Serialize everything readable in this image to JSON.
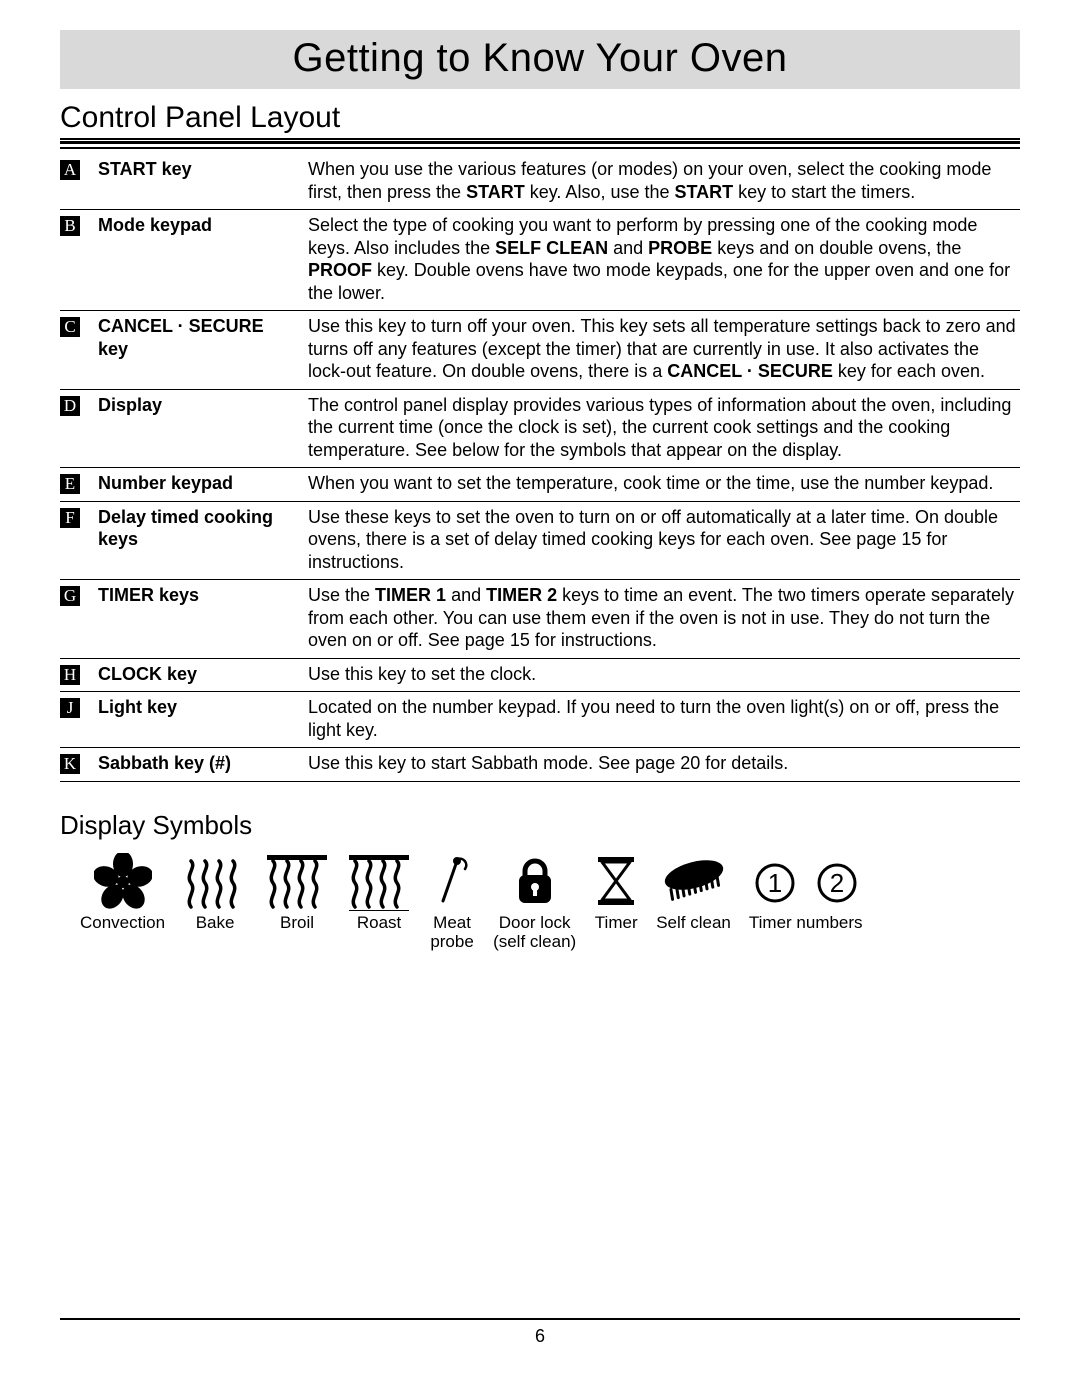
{
  "page": {
    "title": "Getting to Know Your Oven",
    "section_heading": "Control Panel Layout",
    "sub_heading": "Display Symbols",
    "page_number": "6",
    "colors": {
      "title_bg": "#d9d9d9",
      "rule": "#000000",
      "text": "#000000",
      "letter_box_bg": "#000000",
      "letter_box_fg": "#ffffff"
    },
    "fonts": {
      "title_family": "Century Gothic / Futura",
      "body_family": "Verdana/Arial",
      "title_size_pt": 30,
      "heading_size_pt": 22,
      "body_size_pt": 13
    }
  },
  "rows": [
    {
      "letter": "A",
      "label": "START key",
      "desc_html": "When you use the various features (or modes) on your oven, select the cooking mode first, then press the <strong class='inline'>START</strong> key. Also, use the <strong class='inline'>START</strong> key to start the timers."
    },
    {
      "letter": "B",
      "label": "Mode keypad",
      "desc_html": "Select the type of cooking you want to perform by pressing one of the cooking mode keys. Also includes the <strong class='inline'>SELF CLEAN</strong> and <strong class='inline'>PROBE</strong> keys and on double ovens, the <strong class='inline'>PROOF</strong> key. Double ovens have two mode keypads, one for the upper oven and one for the lower."
    },
    {
      "letter": "C",
      "label": "CANCEL · SECURE key",
      "desc_html": "Use this key to turn off your oven. This key sets all temperature settings back to zero and turns off any features (except the timer) that are currently in use. It also activates the lock-out feature. On double ovens, there is a <strong class='inline'>CANCEL · SECURE</strong> key for each oven."
    },
    {
      "letter": "D",
      "label": "Display",
      "desc_html": "The control panel display provides various types of information about the oven, including the current time (once the clock is set), the current cook settings and the cooking temperature. See below for the symbols that appear on the display."
    },
    {
      "letter": "E",
      "label": "Number keypad",
      "desc_html": "When you want to set the temperature, cook time or the time, use the number keypad."
    },
    {
      "letter": "F",
      "label": "Delay timed cooking keys",
      "desc_html": "Use these keys to set the oven to turn on or off automatically at a later time. On double ovens, there is a set of delay timed cooking keys for each oven. See page 15 for instructions."
    },
    {
      "letter": "G",
      "label": "TIMER keys",
      "desc_html": "Use the <strong class='inline'>TIMER 1</strong> and <strong class='inline'>TIMER 2</strong> keys to time an event. The two timers operate separately from each other. You can use them even if the oven is not in use. They do not turn the oven on or off. See page 15 for instructions."
    },
    {
      "letter": "H",
      "label": "CLOCK key",
      "desc_html": "Use this key to set the clock."
    },
    {
      "letter": "J",
      "label": "Light key",
      "desc_html": "Located on the number keypad. If you need to turn the oven light(s) on or off, press the light key."
    },
    {
      "letter": "K",
      "label": "Sabbath key (#)",
      "desc_html": "Use this key to start Sabbath mode. See page 20 for details."
    }
  ],
  "symbols": [
    {
      "name": "convection-icon",
      "label": "Convection"
    },
    {
      "name": "bake-icon",
      "label": "Bake"
    },
    {
      "name": "broil-icon",
      "label": "Broil"
    },
    {
      "name": "roast-icon",
      "label": "Roast"
    },
    {
      "name": "meat-probe-icon",
      "label": "Meat\nprobe"
    },
    {
      "name": "door-lock-icon",
      "label": "Door lock\n(self clean)"
    },
    {
      "name": "timer-icon",
      "label": "Timer"
    },
    {
      "name": "self-clean-icon",
      "label": "Self clean"
    },
    {
      "name": "timer-1-icon",
      "label": "Timer numbers",
      "numeral": "1"
    },
    {
      "name": "timer-2-icon",
      "label": "",
      "numeral": "2"
    }
  ]
}
